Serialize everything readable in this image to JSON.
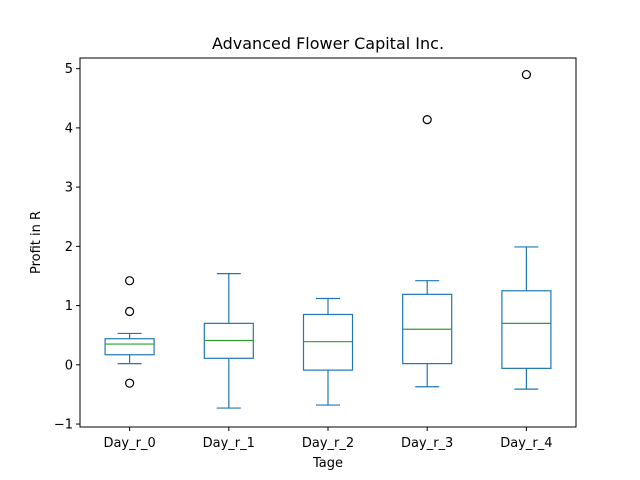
{
  "chart_data": {
    "type": "box",
    "title": "Advanced Flower Capital Inc.",
    "xlabel": "Tage",
    "ylabel": "Profit in R",
    "ylim": [
      -1.05,
      5.18
    ],
    "yticks": [
      -1,
      0,
      1,
      2,
      3,
      4,
      5
    ],
    "grid": false,
    "legend": "none",
    "box_color": "#1f77b4",
    "median_color": "#2ca02c",
    "categories": [
      "Day_r_0",
      "Day_r_1",
      "Day_r_2",
      "Day_r_3",
      "Day_r_4"
    ],
    "boxes": [
      {
        "label": "Day_r_0",
        "whisker_low": 0.02,
        "q1": 0.17,
        "median": 0.35,
        "q3": 0.44,
        "whisker_high": 0.53,
        "outliers": [
          1.42,
          0.9,
          -0.31
        ]
      },
      {
        "label": "Day_r_1",
        "whisker_low": -0.73,
        "q1": 0.11,
        "median": 0.41,
        "q3": 0.7,
        "whisker_high": 1.54,
        "outliers": []
      },
      {
        "label": "Day_r_2",
        "whisker_low": -0.68,
        "q1": -0.09,
        "median": 0.39,
        "q3": 0.85,
        "whisker_high": 1.12,
        "outliers": []
      },
      {
        "label": "Day_r_3",
        "whisker_low": -0.37,
        "q1": 0.02,
        "median": 0.6,
        "q3": 1.19,
        "whisker_high": 1.42,
        "outliers": [
          4.14
        ]
      },
      {
        "label": "Day_r_4",
        "whisker_low": -0.41,
        "q1": -0.06,
        "median": 0.7,
        "q3": 1.25,
        "whisker_high": 1.99,
        "outliers": [
          4.9
        ]
      }
    ]
  }
}
